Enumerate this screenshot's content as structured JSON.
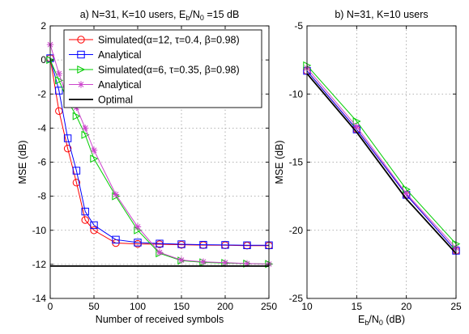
{
  "chart_data": [
    {
      "type": "line",
      "title_parts": {
        "main": "a) N=31, K=10 users, E",
        "sub": "b",
        "mid": "/N",
        "sub2": "0",
        "tail": " =15 dB"
      },
      "xlabel": "Number of received symbols",
      "ylabel": "MSE (dB)",
      "xlim": [
        0,
        250
      ],
      "ylim": [
        -14,
        2
      ],
      "xticks": [
        0,
        50,
        100,
        150,
        200,
        250
      ],
      "yticks": [
        2,
        0,
        -2,
        -4,
        -6,
        -8,
        -10,
        -12,
        -14
      ],
      "grid": true,
      "legend_position": "top-right",
      "series": [
        {
          "name": "Simulated(α=12, τ=0.4, β=0.98)",
          "color": "#ff0000",
          "marker": "circle",
          "x": [
            0,
            10,
            20,
            30,
            40,
            50,
            75,
            100,
            125,
            150,
            175,
            200,
            225,
            250
          ],
          "y": [
            0.1,
            -3.0,
            -5.2,
            -7.2,
            -9.4,
            -10.0,
            -10.75,
            -10.8,
            -10.82,
            -10.85,
            -10.87,
            -10.88,
            -10.9,
            -10.9
          ]
        },
        {
          "name": "Analytical",
          "color": "#0000ff",
          "marker": "square",
          "x": [
            0,
            10,
            20,
            30,
            40,
            50,
            75,
            100,
            125,
            150,
            175,
            200,
            225,
            250
          ],
          "y": [
            0.1,
            -1.8,
            -4.6,
            -6.5,
            -8.9,
            -9.7,
            -10.55,
            -10.72,
            -10.78,
            -10.82,
            -10.85,
            -10.86,
            -10.88,
            -10.88
          ]
        },
        {
          "name": "Simulated(α=6, τ=0.35, β=0.98)",
          "color": "#00cc00",
          "marker": "triangle-right",
          "x": [
            0,
            10,
            20,
            30,
            40,
            50,
            75,
            100,
            125,
            150,
            175,
            200,
            225,
            250
          ],
          "y": [
            0.0,
            -1.2,
            -2.4,
            -3.3,
            -4.4,
            -5.8,
            -8.0,
            -10.0,
            -11.35,
            -11.78,
            -11.88,
            -11.92,
            -11.96,
            -11.98
          ]
        },
        {
          "name": "Analytical",
          "color": "#cc44cc",
          "marker": "asterisk",
          "x": [
            0,
            10,
            20,
            30,
            40,
            50,
            75,
            100,
            125,
            150,
            175,
            200,
            225,
            250
          ],
          "y": [
            0.9,
            -0.8,
            -2.3,
            -2.8,
            -4.0,
            -5.3,
            -7.9,
            -9.8,
            -11.3,
            -11.75,
            -11.85,
            -11.9,
            -11.95,
            -11.98
          ]
        },
        {
          "name": "Optimal",
          "color": "#000000",
          "marker": "none",
          "x": [
            0,
            250
          ],
          "y": [
            -12.1,
            -12.1
          ]
        }
      ]
    },
    {
      "type": "line",
      "title": "b) N=31, K=10 users",
      "xlabel_parts": {
        "main": "E",
        "sub": "b",
        "mid": "/N",
        "sub2": "0",
        "tail": " (dB)"
      },
      "ylabel": "MSE (dB)",
      "xlim": [
        10,
        25
      ],
      "ylim": [
        -25,
        -5
      ],
      "xticks": [
        10,
        15,
        20,
        25
      ],
      "yticks": [
        -5,
        -10,
        -15,
        -20,
        -25
      ],
      "grid": true,
      "series": [
        {
          "color": "#ff0000",
          "marker": "circle",
          "x": [
            10,
            15,
            20,
            25
          ],
          "y": [
            -8.3,
            -12.6,
            -17.4,
            -21.5
          ]
        },
        {
          "color": "#0000ff",
          "marker": "square",
          "x": [
            10,
            15,
            20,
            25
          ],
          "y": [
            -8.3,
            -12.6,
            -17.4,
            -21.5
          ]
        },
        {
          "color": "#00cc00",
          "marker": "triangle-right",
          "x": [
            10,
            15,
            20,
            25
          ],
          "y": [
            -7.9,
            -12.0,
            -17.0,
            -21.0
          ]
        },
        {
          "color": "#cc44cc",
          "marker": "asterisk",
          "x": [
            10,
            15,
            20,
            25
          ],
          "y": [
            -8.1,
            -12.4,
            -17.3,
            -21.3
          ]
        },
        {
          "color": "#000000",
          "marker": "none",
          "x": [
            10,
            15,
            20,
            25
          ],
          "y": [
            -8.5,
            -12.8,
            -17.7,
            -21.7
          ]
        }
      ]
    }
  ]
}
